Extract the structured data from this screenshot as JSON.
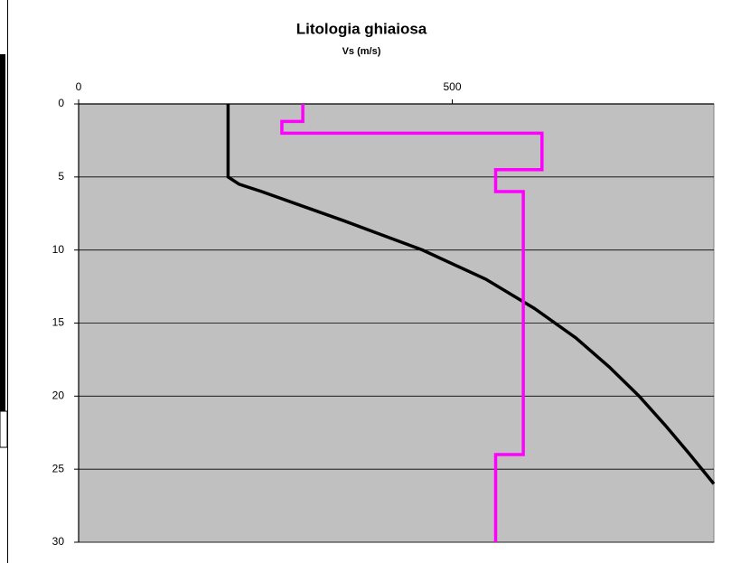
{
  "chart_data": {
    "type": "line",
    "title": "Litologia ghiaiosa",
    "x_label": "Vs (m/s)",
    "xlim": [
      0,
      850
    ],
    "xticks": [
      0,
      500
    ],
    "ylim": [
      0,
      30
    ],
    "yticks": [
      0,
      5,
      10,
      15,
      20,
      25,
      30
    ],
    "y_inverted": true,
    "grid": true,
    "plot_color": "#c0c0c0",
    "series": [
      {
        "color": "#000000",
        "x": [
          200,
          200,
          215,
          245,
          300,
          355,
          460,
          545,
          610,
          665,
          710,
          750,
          785,
          818,
          850
        ],
        "y": [
          0,
          5,
          5.5,
          6,
          7,
          8,
          10,
          12,
          14,
          16,
          18,
          20,
          22,
          24,
          26
        ]
      },
      {
        "color": "#ff00ff",
        "x": [
          300,
          300,
          272,
          272,
          620,
          620,
          558,
          558,
          595,
          595,
          558,
          558
        ],
        "y": [
          0,
          1.2,
          1.2,
          2,
          2,
          4.5,
          4.5,
          6,
          6,
          24,
          24,
          30
        ]
      }
    ]
  }
}
